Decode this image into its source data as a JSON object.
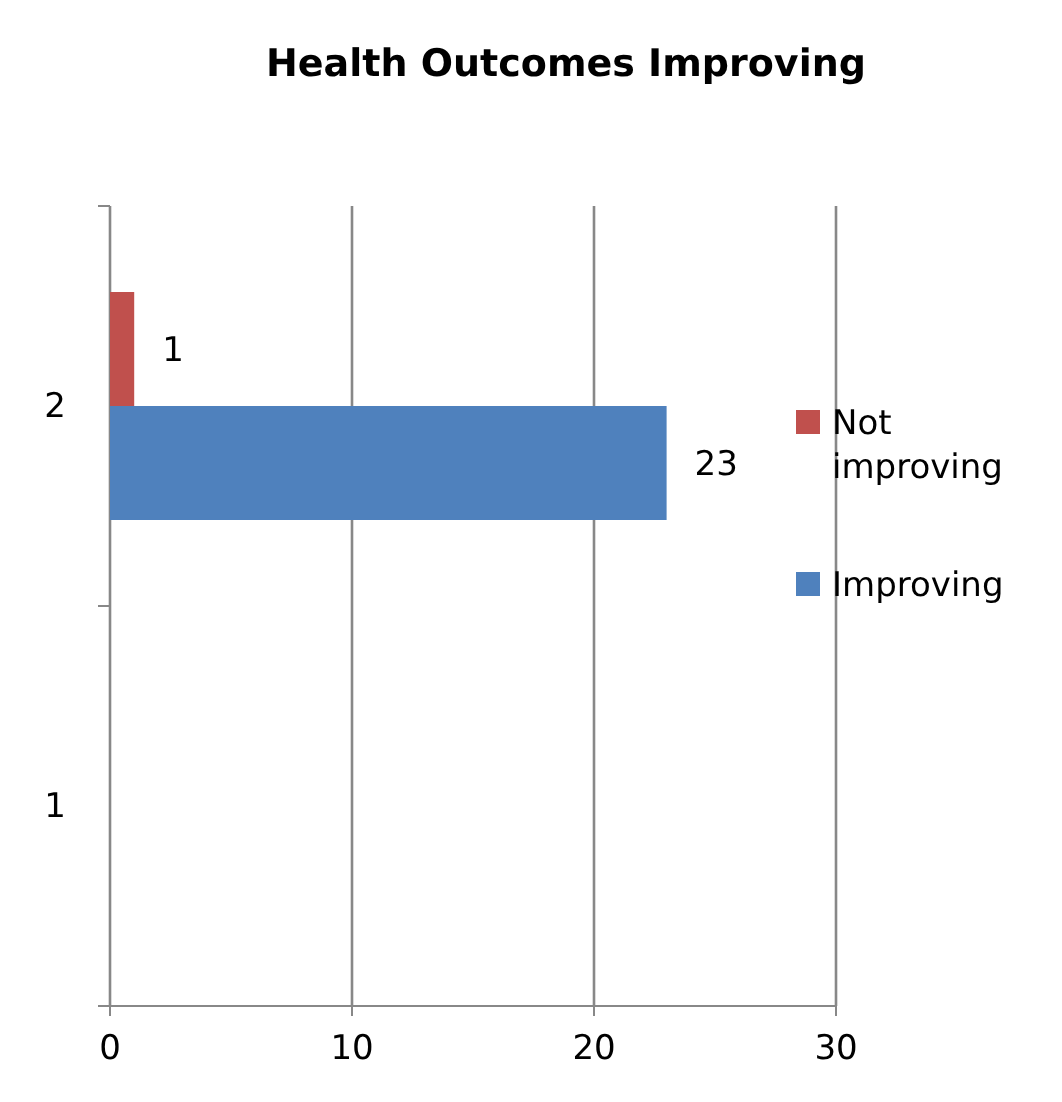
{
  "chart_data": {
    "type": "bar",
    "orientation": "horizontal",
    "title": "Health Outcomes Improving",
    "categories": [
      "2",
      "1"
    ],
    "series": [
      {
        "name": "Improving",
        "color": "#4f81bd",
        "values": [
          23,
          null
        ]
      },
      {
        "name": "Not improving",
        "color": "#c0504d",
        "values": [
          1,
          null
        ]
      }
    ],
    "xlim": [
      0,
      30
    ],
    "xticks": [
      0,
      10,
      20,
      30
    ],
    "grid": "x",
    "legend": "right",
    "data_labels": true
  }
}
